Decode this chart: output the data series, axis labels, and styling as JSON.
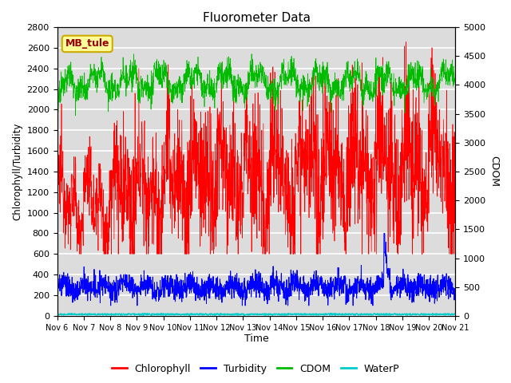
{
  "title": "Fluorometer Data",
  "xlabel": "Time",
  "ylabel_left": "Chlorophyll/Turbidity",
  "ylabel_right": "CDOM",
  "station_label": "MB_tule",
  "ylim_left": [
    0,
    2800
  ],
  "ylim_right": [
    0,
    5000
  ],
  "x_tick_labels": [
    "Nov 6",
    "Nov 7",
    "Nov 8",
    "Nov 9",
    "Nov 10",
    "Nov 11",
    "Nov 12",
    "Nov 13",
    "Nov 14",
    "Nov 15",
    "Nov 16",
    "Nov 17",
    "Nov 18",
    "Nov 19",
    "Nov 20",
    "Nov 21"
  ],
  "colors": {
    "chlorophyll": "#ff0000",
    "turbidity": "#0000ff",
    "cdom": "#00bb00",
    "waterp": "#00cccc",
    "background": "#dcdcdc",
    "station_bg": "#ffff99",
    "station_border": "#ccaa00",
    "grid": "#ffffff"
  },
  "seed": 12345
}
